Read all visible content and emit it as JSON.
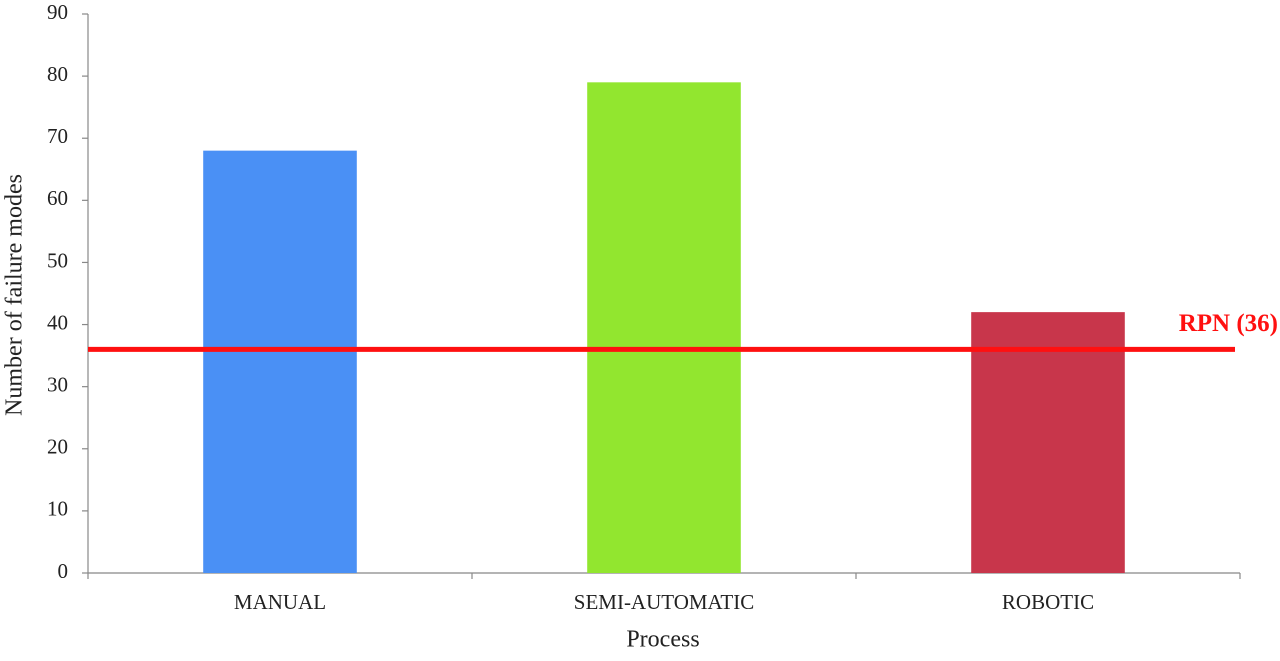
{
  "chart_data": {
    "type": "bar",
    "x_label": "Process",
    "y_label": "Number of failure modes",
    "categories": [
      "MANUAL",
      "SEMI-AUTOMATIC",
      "ROBOTIC"
    ],
    "values": [
      68,
      79,
      42
    ],
    "colors": [
      "#4a90f5",
      "#92e62f",
      "#c8364b"
    ],
    "ylim": [
      0,
      90
    ],
    "yticks": [
      0,
      10,
      20,
      30,
      40,
      50,
      60,
      70,
      80,
      90
    ],
    "grid": false,
    "reference_line": {
      "value": 36,
      "label": "RPN (36)",
      "color": "#ff1010"
    }
  }
}
